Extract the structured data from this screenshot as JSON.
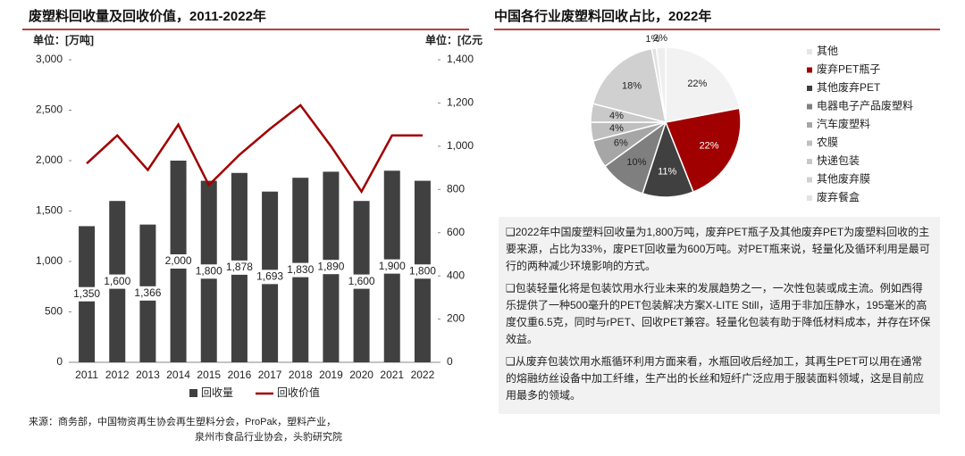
{
  "chart_data": [
    {
      "type": "bar",
      "title": "废塑料回收量及回收价值，2011-2022年",
      "y_label": "单位：[万吨]",
      "y2_label": "单位：[亿元",
      "categories": [
        "2011",
        "2012",
        "2013",
        "2014",
        "2015",
        "2016",
        "2017",
        "2018",
        "2019",
        "2020",
        "2021",
        "2022"
      ],
      "series": [
        {
          "name": "回收量",
          "type": "bar",
          "color": "#404040",
          "axis": "y",
          "values": [
            1350,
            1600,
            1366,
            2000,
            1800,
            1878,
            1693,
            1830,
            1890,
            1600,
            1900,
            1800
          ],
          "value_labels": [
            "1,350",
            "1,600",
            "1,366",
            "2,000",
            "1,800",
            "1,878",
            "1,693",
            "1,830",
            "1,890",
            "1,600",
            "1,900",
            "1,800"
          ]
        },
        {
          "name": "回收价值",
          "type": "line",
          "color": "#a00000",
          "axis": "y2",
          "values": [
            920,
            1050,
            890,
            1100,
            820,
            960,
            1080,
            1190,
            1000,
            790,
            1050,
            1050
          ]
        }
      ],
      "ylim": [
        0,
        3000
      ],
      "yticks": [
        0,
        500,
        {
          "value": 1000,
          "label": "1,000"
        },
        {
          "value": 1500,
          "label": "1,500"
        },
        {
          "value": 2000,
          "label": "2,000"
        },
        {
          "value": 2500,
          "label": "2,500"
        },
        {
          "value": 3000,
          "label": "3,000"
        }
      ],
      "y2lim": [
        0,
        1400
      ],
      "y2ticks": [
        0,
        200,
        400,
        600,
        800,
        {
          "value": 1000,
          "label": "1,000"
        },
        {
          "value": 1200,
          "label": "1,200"
        },
        {
          "value": 1400,
          "label": "1,400"
        }
      ],
      "legend": "bottom"
    },
    {
      "type": "pie",
      "title": "中国各行业废塑料回收占比，2022年",
      "categories": [
        "其他",
        "废弃PET瓶子",
        "其他废弃PET",
        "电器电子产品废塑料",
        "汽车废塑料",
        "农膜",
        "快递包装",
        "其他废弃膜",
        "废弃餐盒",
        null
      ],
      "values": [
        22,
        22,
        11,
        10,
        6,
        4,
        4,
        18,
        1,
        2
      ],
      "value_labels": [
        "22%",
        "22%",
        "11%",
        "10%",
        "6%",
        "4%",
        "4%",
        "18%",
        "1%",
        "2%"
      ],
      "colors": [
        "#f2f2f2",
        "#a00000",
        "#404040",
        "#7f7f7f",
        "#a6a6a6",
        "#bfbfbf",
        "#c9c9c9",
        "#d0d0d0",
        "#e2e2e2",
        "#eeeeee"
      ],
      "legend": "right"
    }
  ],
  "notes": [
    "❑2022年中国废塑料回收量为1,800万吨，废弃PET瓶子及其他废弃PET为废塑料回收的主要来源，占比为33%，废PET回收量为600万吨。对PET瓶来说，轻量化及循环利用是最可行的两种减少环境影响的方式。",
    "❑包装轻量化将是包装饮用水行业未来的发展趋势之一，一次性包装或成主流。例如西得乐提供了一种500毫升的PET包装解决方案X-LITE Still，适用于非加压静水，195毫米的高度仅重6.5克，同时与rPET、回收PET兼容。轻量化包装有助于降低材料成本，并存在环保效益。",
    "❑从废弃包装饮用水瓶循环利用方面来看，水瓶回收后经加工，其再生PET可以用在通常的熔融纺丝设备中加工纤维，生产出的长丝和短纤广泛应用于服装面料领域，这是目前应用最多的领域。"
  ],
  "source": [
    "来源：商务部，中国物资再生协会再生塑料分会，ProPak，塑料产业，",
    "泉州市食品行业协会，头豹研究院"
  ]
}
